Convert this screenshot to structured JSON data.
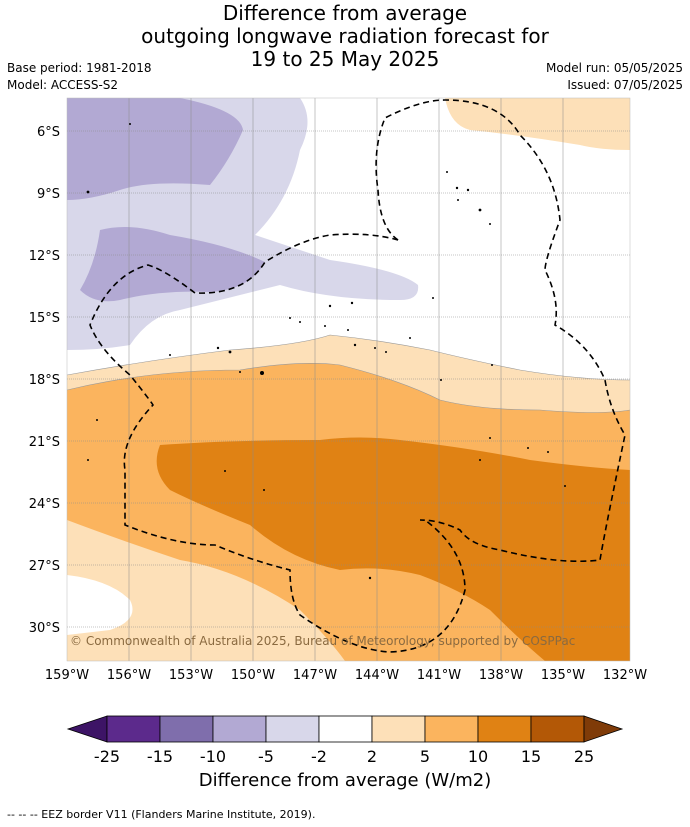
{
  "title": {
    "line1": "Difference from average",
    "line2": "outgoing longwave radiation forecast for",
    "line3": "19 to 25 May 2025"
  },
  "meta": {
    "base_period": "Base period: 1981-2018",
    "model": "Model: ACCESS-S2",
    "model_run": "Model run: 05/05/2025",
    "issued": "Issued: 07/05/2025"
  },
  "map": {
    "copyright": "© Commonwealth of Australia 2025, Bureau of Meteorology, supported by COSPPac",
    "lat_labels": [
      "6°S",
      "9°S",
      "12°S",
      "15°S",
      "18°S",
      "21°S",
      "24°S",
      "27°S",
      "30°S"
    ],
    "lon_labels": [
      "159°W",
      "156°W",
      "153°W",
      "150°W",
      "147°W",
      "144°W",
      "141°W",
      "138°W",
      "135°W",
      "132°W"
    ]
  },
  "colorbar": {
    "title": "Difference from average (W/m2)",
    "ticks": [
      "-25",
      "-15",
      "-10",
      "-5",
      "-2",
      "2",
      "5",
      "10",
      "15",
      "25"
    ],
    "colors": [
      "#3d1466",
      "#5c2a8c",
      "#7f6eac",
      "#b2a9d3",
      "#d8d7ea",
      "#ffffff",
      "#fde0b8",
      "#fbb45e",
      "#e08214",
      "#b35806",
      "#7f3b08"
    ]
  },
  "footnote": "--  --  -- EEZ border V11 (Flanders Marine Institute, 2019)."
}
